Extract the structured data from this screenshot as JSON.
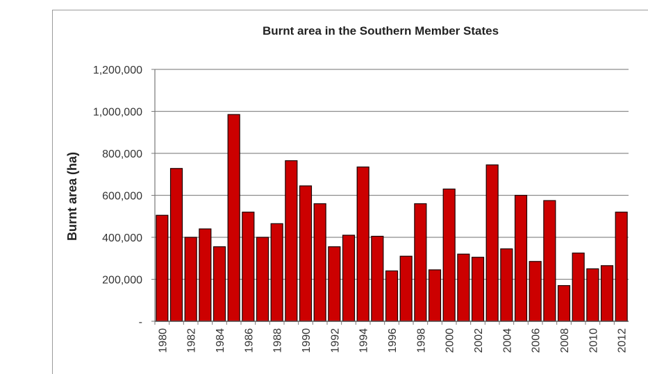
{
  "chart_data": {
    "type": "bar",
    "title": "Burnt area in the Southern Member States",
    "ylabel": "Burnt area (ha)",
    "xlabel": "",
    "ylim": [
      0,
      1200000
    ],
    "y_ticks": [
      0,
      200000,
      400000,
      600000,
      800000,
      1000000,
      1200000
    ],
    "y_tick_labels": [
      "-",
      "200,000",
      "400,000",
      "600,000",
      "800,000",
      "1,000,000",
      "1,200,000"
    ],
    "categories": [
      "1980",
      "1981",
      "1982",
      "1983",
      "1984",
      "1985",
      "1986",
      "1987",
      "1988",
      "1989",
      "1990",
      "1991",
      "1992",
      "1993",
      "1994",
      "1995",
      "1996",
      "1997",
      "1998",
      "1999",
      "2000",
      "2001",
      "2002",
      "2003",
      "2004",
      "2005",
      "2006",
      "2007",
      "2008",
      "2009",
      "2010",
      "2011",
      "2012"
    ],
    "x_tick_labels": [
      "1980",
      "1982",
      "1984",
      "1986",
      "1988",
      "1990",
      "1992",
      "1994",
      "1996",
      "1998",
      "2000",
      "2002",
      "2004",
      "2006",
      "2008",
      "2010",
      "2012"
    ],
    "values": [
      505000,
      728000,
      400000,
      440000,
      355000,
      985000,
      520000,
      400000,
      465000,
      765000,
      645000,
      560000,
      355000,
      410000,
      735000,
      405000,
      240000,
      310000,
      560000,
      245000,
      630000,
      320000,
      305000,
      745000,
      345000,
      600000,
      285000,
      575000,
      170000,
      325000,
      250000,
      265000,
      520000
    ],
    "bar_color": "#cc0000",
    "grid": true,
    "legend": "none"
  }
}
